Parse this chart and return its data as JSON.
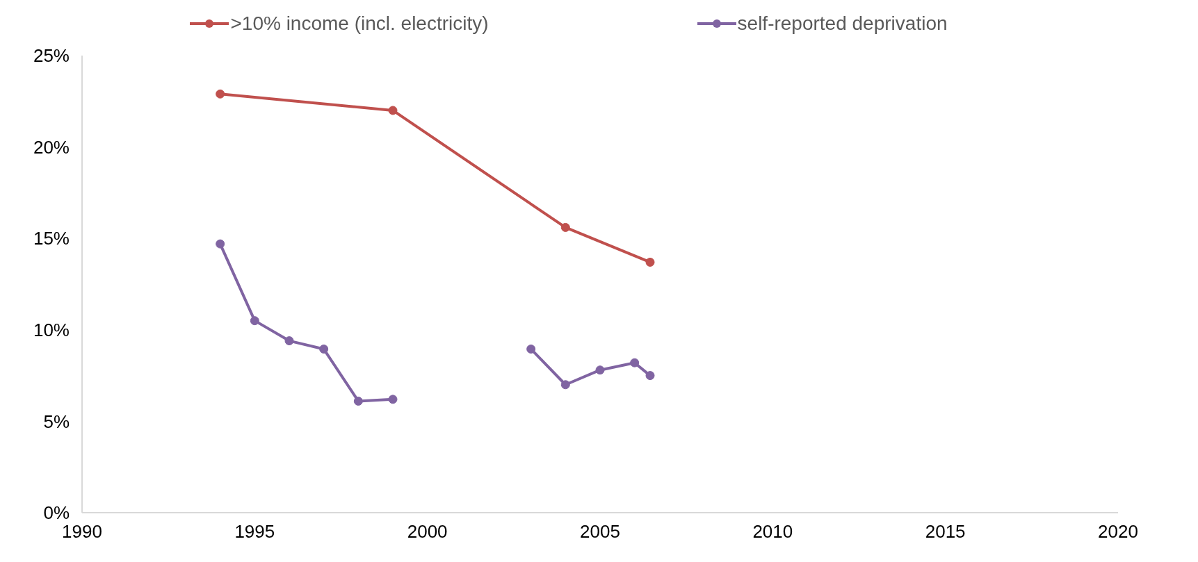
{
  "chart_data": {
    "type": "line",
    "xlim": [
      1990,
      2020
    ],
    "xticks": [
      1990,
      1995,
      2000,
      2005,
      2010,
      2015,
      2020
    ],
    "ylim": [
      0,
      25
    ],
    "yticks": [
      {
        "value": 0,
        "label": "0%"
      },
      {
        "value": 5,
        "label": "5%"
      },
      {
        "value": 10,
        "label": "10%"
      },
      {
        "value": 15,
        "label": "15%"
      },
      {
        "value": 20,
        "label": "20%"
      },
      {
        "value": 25,
        "label": "25%"
      }
    ],
    "grid": false,
    "legend": "top",
    "marker": "circle",
    "line_style": "solid",
    "series": [
      {
        "name": ">10% income (incl. electricity)",
        "color": "#c0504d",
        "x": [
          1994,
          1999,
          2004,
          2006.45
        ],
        "values": [
          22.9,
          22.0,
          15.6,
          13.7
        ]
      },
      {
        "name": "self-reported deprivation",
        "color": "#8064a2",
        "x": [
          1994,
          1995,
          1996,
          1997,
          1998,
          1999,
          2000,
          2003,
          2004,
          2005,
          2006,
          2006.45
        ],
        "values": [
          14.7,
          10.5,
          9.4,
          8.95,
          6.1,
          6.2,
          null,
          8.95,
          7.0,
          7.8,
          8.2,
          7.5
        ]
      }
    ]
  }
}
